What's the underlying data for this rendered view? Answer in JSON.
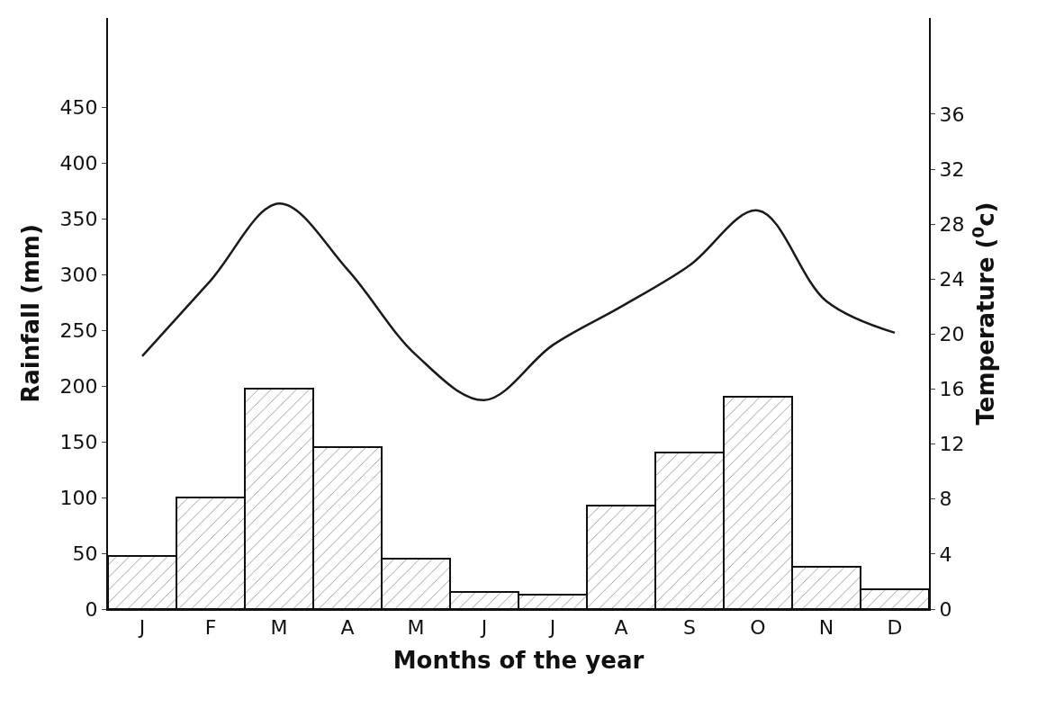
{
  "chart_data": {
    "type": "bar",
    "xlabel": "Months of the year",
    "ylabel": "Rainfall (mm)",
    "y2label": "Temperature ($^{0}$c)",
    "categories": [
      "J",
      "F",
      "M",
      "A",
      "M",
      "J",
      "J",
      "A",
      "S",
      "O",
      "N",
      "D"
    ],
    "series": [
      {
        "color": "#111111",
        "values": [
          48,
          100,
          198,
          145,
          45,
          15,
          13,
          93,
          140,
          190,
          38,
          18
        ]
      },
      {
        "type": "line",
        "axis": "y2",
        "color": "#1a1a1a",
        "values": [
          18.4,
          23.9,
          29.5,
          24.7,
          18.5,
          15.2,
          19.2,
          22.0,
          25.0,
          29.0,
          22.4,
          20.1
        ]
      }
    ],
    "ylim": [
      0,
      530
    ],
    "yticks": [
      0,
      50,
      100,
      150,
      200,
      250,
      300,
      350,
      400,
      450
    ],
    "y2lim": [
      0,
      43
    ],
    "y2ticks": [
      0,
      4,
      8,
      12,
      16,
      20,
      24,
      28,
      32,
      36
    ],
    "line_style": "solid",
    "marker": "none"
  }
}
